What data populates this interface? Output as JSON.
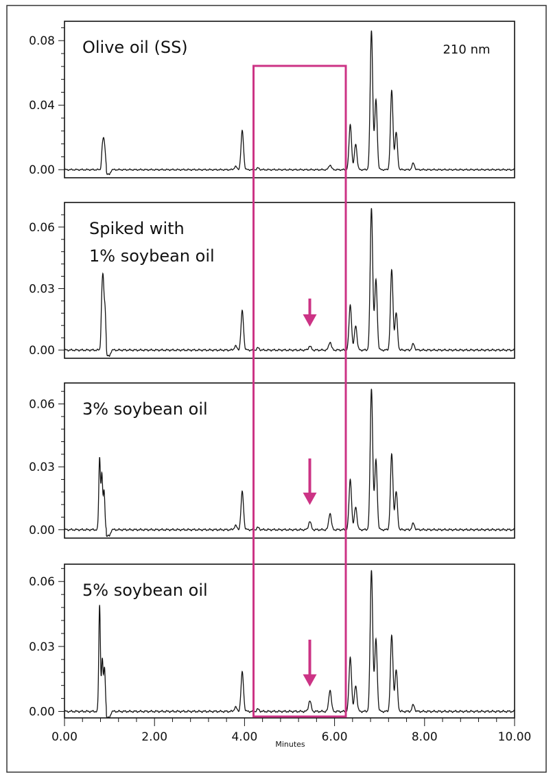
{
  "chart_data": {
    "type": "line",
    "x_axis": {
      "label": "Minutes",
      "range": [
        0,
        10
      ],
      "ticks": [
        "0.00",
        "2.00",
        "4.00",
        "6.00",
        "8.00",
        "10.00"
      ]
    },
    "wavelength_label": "210 nm",
    "highlight_window": {
      "x_range": [
        4.2,
        6.25
      ],
      "color": "#cc3385"
    },
    "panels": [
      {
        "title_lines": [
          "Olive oil (SS)"
        ],
        "ylim": [
          -0.005,
          0.092
        ],
        "y_ticks": [
          0.0,
          0.04,
          0.08
        ],
        "y_tick_labels": [
          "0.00",
          "0.04",
          "0.08"
        ],
        "arrow_at": null,
        "peaks": [
          {
            "x": 0.8,
            "y": -0.004
          },
          {
            "x": 0.84,
            "y": 0.012
          },
          {
            "x": 0.87,
            "y": 0.014
          },
          {
            "x": 0.9,
            "y": 0.01
          },
          {
            "x": 0.93,
            "y": -0.004
          },
          {
            "x": 3.8,
            "y": 0.002
          },
          {
            "x": 3.95,
            "y": 0.024
          },
          {
            "x": 4.3,
            "y": 0.001
          },
          {
            "x": 5.9,
            "y": 0.003
          },
          {
            "x": 6.35,
            "y": 0.028
          },
          {
            "x": 6.47,
            "y": 0.016
          },
          {
            "x": 6.82,
            "y": 0.086
          },
          {
            "x": 6.92,
            "y": 0.043
          },
          {
            "x": 7.27,
            "y": 0.049
          },
          {
            "x": 7.37,
            "y": 0.023
          },
          {
            "x": 7.75,
            "y": 0.004
          }
        ]
      },
      {
        "title_lines": [
          "Spiked with",
          "1% soybean oil"
        ],
        "ylim": [
          -0.004,
          0.072
        ],
        "y_ticks": [
          0.0,
          0.03,
          0.06
        ],
        "y_tick_labels": [
          "0.00",
          "0.03",
          "0.06"
        ],
        "arrow_at": 5.45,
        "peaks": [
          {
            "x": 0.8,
            "y": -0.003
          },
          {
            "x": 0.83,
            "y": 0.022
          },
          {
            "x": 0.86,
            "y": 0.029
          },
          {
            "x": 0.9,
            "y": 0.02
          },
          {
            "x": 0.94,
            "y": -0.003
          },
          {
            "x": 3.8,
            "y": 0.002
          },
          {
            "x": 3.95,
            "y": 0.019
          },
          {
            "x": 4.3,
            "y": 0.001
          },
          {
            "x": 5.45,
            "y": 0.002
          },
          {
            "x": 5.9,
            "y": 0.004
          },
          {
            "x": 6.35,
            "y": 0.022
          },
          {
            "x": 6.47,
            "y": 0.012
          },
          {
            "x": 6.82,
            "y": 0.069
          },
          {
            "x": 6.92,
            "y": 0.034
          },
          {
            "x": 7.27,
            "y": 0.039
          },
          {
            "x": 7.37,
            "y": 0.018
          },
          {
            "x": 7.75,
            "y": 0.003
          }
        ]
      },
      {
        "title_lines": [
          "3% soybean oil"
        ],
        "ylim": [
          -0.004,
          0.07
        ],
        "y_ticks": [
          0.0,
          0.03,
          0.06
        ],
        "y_tick_labels": [
          "0.00",
          "0.03",
          "0.06"
        ],
        "arrow_at": 5.45,
        "peaks": [
          {
            "x": 0.78,
            "y": 0.034
          },
          {
            "x": 0.83,
            "y": 0.026
          },
          {
            "x": 0.88,
            "y": 0.018
          },
          {
            "x": 0.94,
            "y": -0.003
          },
          {
            "x": 3.8,
            "y": 0.002
          },
          {
            "x": 3.95,
            "y": 0.018
          },
          {
            "x": 4.3,
            "y": 0.001
          },
          {
            "x": 5.45,
            "y": 0.004
          },
          {
            "x": 5.9,
            "y": 0.008
          },
          {
            "x": 6.35,
            "y": 0.024
          },
          {
            "x": 6.47,
            "y": 0.011
          },
          {
            "x": 6.82,
            "y": 0.067
          },
          {
            "x": 6.92,
            "y": 0.033
          },
          {
            "x": 7.27,
            "y": 0.036
          },
          {
            "x": 7.37,
            "y": 0.018
          },
          {
            "x": 7.75,
            "y": 0.003
          }
        ]
      },
      {
        "title_lines": [
          "5% soybean oil"
        ],
        "ylim": [
          -0.003,
          0.068
        ],
        "y_ticks": [
          0.0,
          0.03,
          0.06
        ],
        "y_tick_labels": [
          "0.00",
          "0.03",
          "0.06"
        ],
        "arrow_at": 5.45,
        "peaks": [
          {
            "x": 0.78,
            "y": 0.049
          },
          {
            "x": 0.84,
            "y": 0.024
          },
          {
            "x": 0.89,
            "y": 0.02
          },
          {
            "x": 0.95,
            "y": -0.003
          },
          {
            "x": 3.8,
            "y": 0.002
          },
          {
            "x": 3.95,
            "y": 0.018
          },
          {
            "x": 4.3,
            "y": 0.001
          },
          {
            "x": 5.45,
            "y": 0.005
          },
          {
            "x": 5.9,
            "y": 0.01
          },
          {
            "x": 6.35,
            "y": 0.025
          },
          {
            "x": 6.47,
            "y": 0.012
          },
          {
            "x": 6.82,
            "y": 0.065
          },
          {
            "x": 6.92,
            "y": 0.033
          },
          {
            "x": 7.27,
            "y": 0.035
          },
          {
            "x": 7.37,
            "y": 0.019
          },
          {
            "x": 7.75,
            "y": 0.003
          }
        ]
      }
    ]
  }
}
